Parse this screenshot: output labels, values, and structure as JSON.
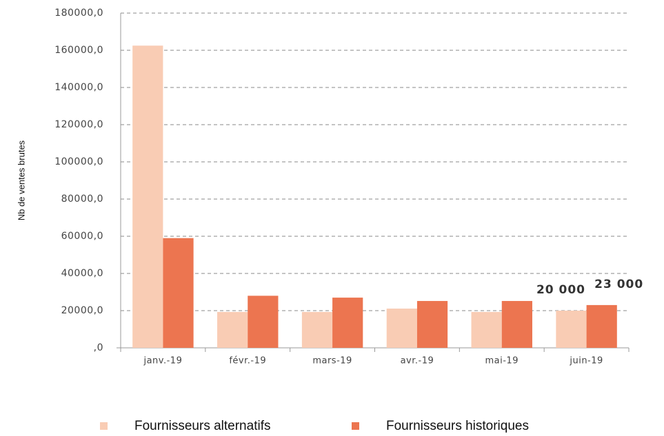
{
  "chart_data": {
    "type": "bar",
    "y_label": "Nb de ventes brutes",
    "categories": [
      "janv.-19",
      "févr.-19",
      "mars-19",
      "avr.-19",
      "mai-19",
      "juin-19"
    ],
    "series": [
      {
        "name": "Fournisseurs alternatifs",
        "color": "#f9ccb4",
        "values": [
          162500,
          19300,
          19300,
          21100,
          19300,
          20000
        ],
        "value_labels": [
          null,
          null,
          null,
          null,
          null,
          "20 000"
        ]
      },
      {
        "name": "Fournisseurs historiques",
        "color": "#ec7550",
        "values": [
          59000,
          28000,
          27000,
          25200,
          25200,
          23000
        ],
        "value_labels": [
          null,
          null,
          null,
          null,
          null,
          "23 000"
        ]
      }
    ],
    "ylim": [
      0,
      180000
    ],
    "yticks": [
      {
        "value": 0,
        "label": ",0"
      },
      {
        "value": 20000,
        "label": "20000,0"
      },
      {
        "value": 40000,
        "label": "40000,0"
      },
      {
        "value": 60000,
        "label": "60000,0"
      },
      {
        "value": 80000,
        "label": "80000,0"
      },
      {
        "value": 100000,
        "label": "100000,0"
      },
      {
        "value": 120000,
        "label": "120000,0"
      },
      {
        "value": 140000,
        "label": "140000,0"
      },
      {
        "value": 160000,
        "label": "160000,0"
      },
      {
        "value": 180000,
        "label": "180000,0"
      }
    ],
    "grid": true,
    "legend": "bottom"
  }
}
